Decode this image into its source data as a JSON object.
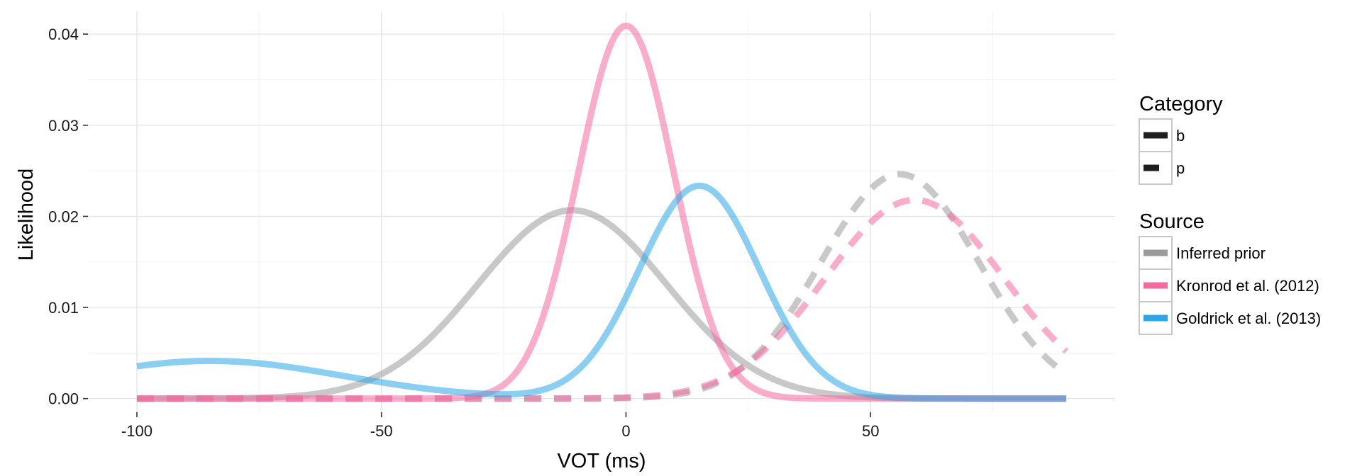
{
  "chart_data": {
    "type": "line",
    "xlabel": "VOT (ms)",
    "ylabel": "Likelihood",
    "xlim": [
      -110,
      100
    ],
    "ylim": [
      -0.0015,
      0.0425
    ],
    "x_ticks": [
      -100,
      -50,
      0,
      50
    ],
    "x_tick_labels": [
      "-100",
      "-50",
      "0",
      "50"
    ],
    "y_ticks": [
      0.0,
      0.01,
      0.02,
      0.03,
      0.04
    ],
    "y_tick_labels": [
      "0.00",
      "0.01",
      "0.02",
      "0.03",
      "0.04"
    ],
    "grid": true,
    "x_range": [
      -100,
      90
    ],
    "legend": {
      "placement": "right",
      "category": {
        "title": "Category",
        "items": [
          {
            "label": "b",
            "linetype": "solid"
          },
          {
            "label": "p",
            "linetype": "dashed"
          }
        ]
      },
      "source": {
        "title": "Source",
        "items": [
          {
            "label": "Inferred prior",
            "color": "#9a9a9a"
          },
          {
            "label": "Kronrod et al. (2012)",
            "color": "#f768a1"
          },
          {
            "label": "Goldrick et al. (2013)",
            "color": "#29a8e8"
          }
        ]
      }
    },
    "series": [
      {
        "source": "Inferred prior",
        "category": "b",
        "mean": -11,
        "sd": 19.3,
        "color": "#9a9a9a"
      },
      {
        "source": "Inferred prior",
        "category": "p",
        "mean": 56,
        "sd": 16.2,
        "color": "#9a9a9a"
      },
      {
        "source": "Kronrod et al. (2012)",
        "category": "b",
        "mean": 0,
        "sd": 9.75,
        "color": "#f768a1"
      },
      {
        "source": "Kronrod et al. (2012)",
        "category": "p",
        "mean": 59,
        "sd": 18.3,
        "color": "#f768a1"
      },
      {
        "source": "Goldrick et al. (2013)",
        "category": "b",
        "components": [
          {
            "weight": 0.72,
            "mean": 15,
            "sd": 12.3
          },
          {
            "weight": 0.28,
            "mean": -85,
            "sd": 27.0
          }
        ],
        "color": "#29a8e8"
      }
    ]
  }
}
